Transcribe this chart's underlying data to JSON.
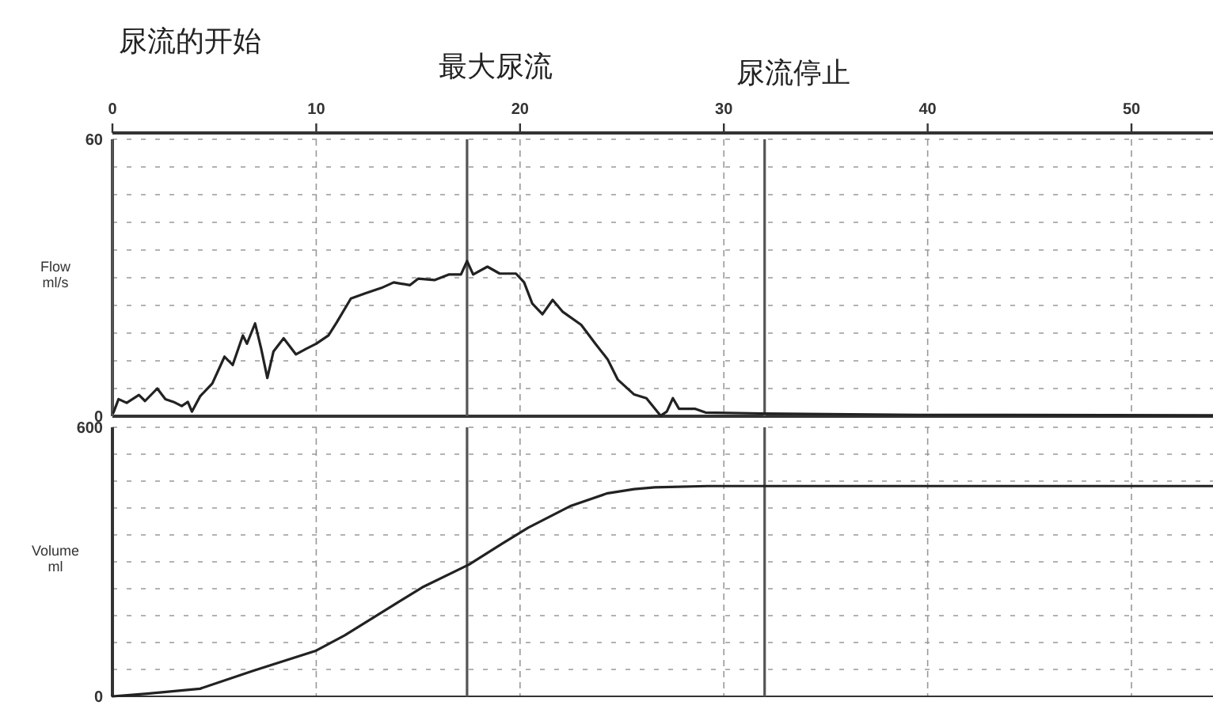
{
  "chart_data": [
    {
      "type": "line",
      "ylabel": "Flow ml/s",
      "xlim": [
        0,
        54
      ],
      "xticks": [
        0,
        10,
        20,
        30,
        40,
        50
      ],
      "ylim": [
        0,
        60
      ],
      "yticks": [
        0,
        {
          "value": 6,
          "label": null
        },
        {
          "value": 12,
          "label": null
        },
        {
          "value": 18,
          "label": null
        },
        {
          "value": 24,
          "label": null
        },
        {
          "value": 30,
          "label": null
        },
        {
          "value": 36,
          "label": null
        },
        {
          "value": 42,
          "label": null
        },
        {
          "value": 48,
          "label": null
        },
        {
          "value": 54,
          "label": null
        },
        60
      ],
      "grid": true,
      "line_style": "solid",
      "ref_lines": [
        {
          "axis": "x",
          "value": 0,
          "label": "尿流的开始",
          "color": "#555555"
        },
        {
          "axis": "x",
          "value": 17.4,
          "label": "最大尿流",
          "color": "#555555"
        },
        {
          "axis": "x",
          "value": 32,
          "label": "尿流停止",
          "color": "#555555"
        }
      ],
      "series": [
        {
          "color": "#222222",
          "x": [
            0.05,
            0.3,
            0.7,
            1.3,
            1.6,
            2.2,
            2.6,
            3.0,
            3.4,
            3.7,
            3.9,
            4.3,
            4.9,
            5.5,
            5.9,
            6.4,
            6.6,
            7.0,
            7.3,
            7.6,
            7.9,
            8.4,
            9.0,
            9.5,
            10.0,
            10.6,
            11.0,
            11.7,
            12.4,
            13.2,
            13.8,
            14.6,
            15.0,
            15.8,
            16.5,
            17.1,
            17.4,
            17.7,
            18.4,
            19.0,
            19.8,
            20.2,
            20.6,
            21.1,
            21.6,
            22.1,
            23.0,
            23.7,
            24.3,
            24.8,
            25.6,
            26.2,
            26.9,
            27.2,
            27.5,
            27.8,
            28.6,
            29.1,
            31.8,
            39.5,
            54
          ],
          "values": [
            0.8,
            3.7,
            2.9,
            4.6,
            3.3,
            6.0,
            3.7,
            3.1,
            2.2,
            3.1,
            1.0,
            4.3,
            7.1,
            12.9,
            11.1,
            17.5,
            15.7,
            20.1,
            14.6,
            8.3,
            14.0,
            16.9,
            13.4,
            14.6,
            15.7,
            17.5,
            20.3,
            25.5,
            26.6,
            27.8,
            29.0,
            28.4,
            29.8,
            29.5,
            30.7,
            30.7,
            33.6,
            30.7,
            32.4,
            30.9,
            30.9,
            29.0,
            24.4,
            22.1,
            25.2,
            22.6,
            19.8,
            15.7,
            12.3,
            7.9,
            4.7,
            3.9,
            0.1,
            1.0,
            3.9,
            1.6,
            1.6,
            0.8,
            0.6,
            0.3,
            0.2
          ]
        }
      ]
    },
    {
      "type": "line",
      "ylabel": "Volume ml",
      "xlim": [
        0,
        54
      ],
      "xticks": [
        0,
        10,
        20,
        30,
        40,
        50
      ],
      "tick_labels": "y",
      "ylim": [
        0,
        600
      ],
      "yticks": [
        0,
        {
          "value": 60,
          "label": null
        },
        {
          "value": 120,
          "label": null
        },
        {
          "value": 180,
          "label": null
        },
        {
          "value": 240,
          "label": null
        },
        {
          "value": 300,
          "label": null
        },
        {
          "value": 360,
          "label": null
        },
        {
          "value": 420,
          "label": null
        },
        {
          "value": 480,
          "label": null
        },
        {
          "value": 540,
          "label": null
        },
        600
      ],
      "grid": true,
      "line_style": "solid",
      "ref_lines": [
        {
          "axis": "x",
          "value": 17.4,
          "color": "#555555"
        },
        {
          "axis": "x",
          "value": 32,
          "color": "#555555"
        }
      ],
      "series": [
        {
          "color": "#222222",
          "x": [
            0,
            1.7,
            4.3,
            6.9,
            10,
            11.4,
            13.2,
            15.2,
            17.5,
            19.1,
            20.4,
            22.5,
            24.3,
            25.6,
            26.6,
            29.2,
            32,
            54
          ],
          "values": [
            0,
            6,
            17,
            57,
            102,
            136,
            187,
            243,
            294,
            340,
            376,
            425,
            453,
            462,
            466,
            469,
            469,
            469
          ]
        }
      ]
    }
  ]
}
